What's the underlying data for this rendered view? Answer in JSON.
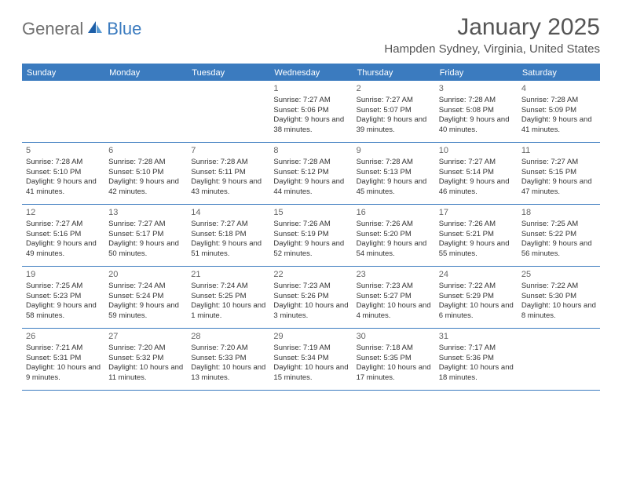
{
  "brand": {
    "general": "General",
    "blue": "Blue"
  },
  "header": {
    "month_title": "January 2025",
    "location": "Hampden Sydney, Virginia, United States"
  },
  "colors": {
    "accent": "#3b7bbf",
    "text": "#333333",
    "muted": "#666666",
    "background": "#ffffff"
  },
  "weekdays": [
    "Sunday",
    "Monday",
    "Tuesday",
    "Wednesday",
    "Thursday",
    "Friday",
    "Saturday"
  ],
  "calendar": {
    "type": "table",
    "first_weekday_index": 3,
    "days": [
      {
        "n": "1",
        "sunrise": "Sunrise: 7:27 AM",
        "sunset": "Sunset: 5:06 PM",
        "daylight": "Daylight: 9 hours and 38 minutes."
      },
      {
        "n": "2",
        "sunrise": "Sunrise: 7:27 AM",
        "sunset": "Sunset: 5:07 PM",
        "daylight": "Daylight: 9 hours and 39 minutes."
      },
      {
        "n": "3",
        "sunrise": "Sunrise: 7:28 AM",
        "sunset": "Sunset: 5:08 PM",
        "daylight": "Daylight: 9 hours and 40 minutes."
      },
      {
        "n": "4",
        "sunrise": "Sunrise: 7:28 AM",
        "sunset": "Sunset: 5:09 PM",
        "daylight": "Daylight: 9 hours and 41 minutes."
      },
      {
        "n": "5",
        "sunrise": "Sunrise: 7:28 AM",
        "sunset": "Sunset: 5:10 PM",
        "daylight": "Daylight: 9 hours and 41 minutes."
      },
      {
        "n": "6",
        "sunrise": "Sunrise: 7:28 AM",
        "sunset": "Sunset: 5:10 PM",
        "daylight": "Daylight: 9 hours and 42 minutes."
      },
      {
        "n": "7",
        "sunrise": "Sunrise: 7:28 AM",
        "sunset": "Sunset: 5:11 PM",
        "daylight": "Daylight: 9 hours and 43 minutes."
      },
      {
        "n": "8",
        "sunrise": "Sunrise: 7:28 AM",
        "sunset": "Sunset: 5:12 PM",
        "daylight": "Daylight: 9 hours and 44 minutes."
      },
      {
        "n": "9",
        "sunrise": "Sunrise: 7:28 AM",
        "sunset": "Sunset: 5:13 PM",
        "daylight": "Daylight: 9 hours and 45 minutes."
      },
      {
        "n": "10",
        "sunrise": "Sunrise: 7:27 AM",
        "sunset": "Sunset: 5:14 PM",
        "daylight": "Daylight: 9 hours and 46 minutes."
      },
      {
        "n": "11",
        "sunrise": "Sunrise: 7:27 AM",
        "sunset": "Sunset: 5:15 PM",
        "daylight": "Daylight: 9 hours and 47 minutes."
      },
      {
        "n": "12",
        "sunrise": "Sunrise: 7:27 AM",
        "sunset": "Sunset: 5:16 PM",
        "daylight": "Daylight: 9 hours and 49 minutes."
      },
      {
        "n": "13",
        "sunrise": "Sunrise: 7:27 AM",
        "sunset": "Sunset: 5:17 PM",
        "daylight": "Daylight: 9 hours and 50 minutes."
      },
      {
        "n": "14",
        "sunrise": "Sunrise: 7:27 AM",
        "sunset": "Sunset: 5:18 PM",
        "daylight": "Daylight: 9 hours and 51 minutes."
      },
      {
        "n": "15",
        "sunrise": "Sunrise: 7:26 AM",
        "sunset": "Sunset: 5:19 PM",
        "daylight": "Daylight: 9 hours and 52 minutes."
      },
      {
        "n": "16",
        "sunrise": "Sunrise: 7:26 AM",
        "sunset": "Sunset: 5:20 PM",
        "daylight": "Daylight: 9 hours and 54 minutes."
      },
      {
        "n": "17",
        "sunrise": "Sunrise: 7:26 AM",
        "sunset": "Sunset: 5:21 PM",
        "daylight": "Daylight: 9 hours and 55 minutes."
      },
      {
        "n": "18",
        "sunrise": "Sunrise: 7:25 AM",
        "sunset": "Sunset: 5:22 PM",
        "daylight": "Daylight: 9 hours and 56 minutes."
      },
      {
        "n": "19",
        "sunrise": "Sunrise: 7:25 AM",
        "sunset": "Sunset: 5:23 PM",
        "daylight": "Daylight: 9 hours and 58 minutes."
      },
      {
        "n": "20",
        "sunrise": "Sunrise: 7:24 AM",
        "sunset": "Sunset: 5:24 PM",
        "daylight": "Daylight: 9 hours and 59 minutes."
      },
      {
        "n": "21",
        "sunrise": "Sunrise: 7:24 AM",
        "sunset": "Sunset: 5:25 PM",
        "daylight": "Daylight: 10 hours and 1 minute."
      },
      {
        "n": "22",
        "sunrise": "Sunrise: 7:23 AM",
        "sunset": "Sunset: 5:26 PM",
        "daylight": "Daylight: 10 hours and 3 minutes."
      },
      {
        "n": "23",
        "sunrise": "Sunrise: 7:23 AM",
        "sunset": "Sunset: 5:27 PM",
        "daylight": "Daylight: 10 hours and 4 minutes."
      },
      {
        "n": "24",
        "sunrise": "Sunrise: 7:22 AM",
        "sunset": "Sunset: 5:29 PM",
        "daylight": "Daylight: 10 hours and 6 minutes."
      },
      {
        "n": "25",
        "sunrise": "Sunrise: 7:22 AM",
        "sunset": "Sunset: 5:30 PM",
        "daylight": "Daylight: 10 hours and 8 minutes."
      },
      {
        "n": "26",
        "sunrise": "Sunrise: 7:21 AM",
        "sunset": "Sunset: 5:31 PM",
        "daylight": "Daylight: 10 hours and 9 minutes."
      },
      {
        "n": "27",
        "sunrise": "Sunrise: 7:20 AM",
        "sunset": "Sunset: 5:32 PM",
        "daylight": "Daylight: 10 hours and 11 minutes."
      },
      {
        "n": "28",
        "sunrise": "Sunrise: 7:20 AM",
        "sunset": "Sunset: 5:33 PM",
        "daylight": "Daylight: 10 hours and 13 minutes."
      },
      {
        "n": "29",
        "sunrise": "Sunrise: 7:19 AM",
        "sunset": "Sunset: 5:34 PM",
        "daylight": "Daylight: 10 hours and 15 minutes."
      },
      {
        "n": "30",
        "sunrise": "Sunrise: 7:18 AM",
        "sunset": "Sunset: 5:35 PM",
        "daylight": "Daylight: 10 hours and 17 minutes."
      },
      {
        "n": "31",
        "sunrise": "Sunrise: 7:17 AM",
        "sunset": "Sunset: 5:36 PM",
        "daylight": "Daylight: 10 hours and 18 minutes."
      }
    ]
  }
}
